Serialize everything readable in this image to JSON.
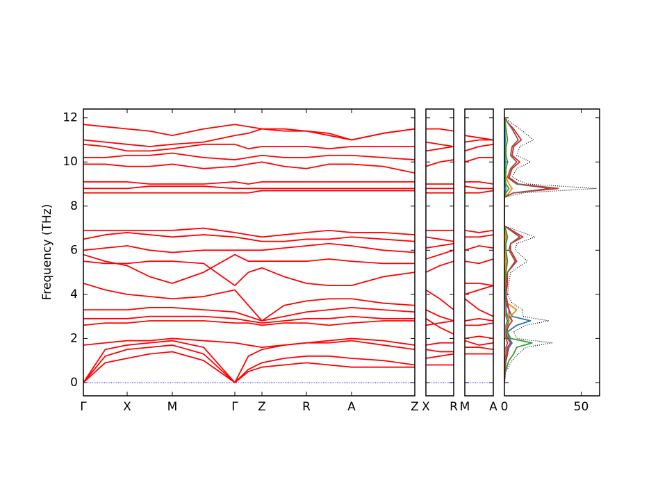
{
  "chart_data": [
    {
      "type": "line",
      "ylabel": "Frequency (THz)",
      "color": "#ff0000",
      "hline": 0,
      "hline_color": "#0000ff",
      "x": [
        0,
        0.315,
        0.63,
        0.955,
        1.28,
        1.73,
        2.18,
        2.375,
        2.57,
        2.89,
        3.21,
        3.535,
        3.86,
        4.315,
        4.77
      ],
      "xlim": [
        0,
        4.77
      ],
      "xticks": [
        {
          "value": 0,
          "label": "Γ"
        },
        {
          "value": 0.63,
          "label": "X"
        },
        {
          "value": 1.28,
          "label": "M"
        },
        {
          "value": 2.18,
          "label": "Γ"
        },
        {
          "value": 2.57,
          "label": "Z"
        },
        {
          "value": 3.21,
          "label": "R"
        },
        {
          "value": 3.86,
          "label": "A"
        },
        {
          "value": 4.77,
          "label": "Z"
        }
      ],
      "ylim": [
        -0.6,
        12.4
      ],
      "yticks": [
        0,
        2,
        4,
        6,
        8,
        10,
        12
      ],
      "series": [
        {
          "values": [
            0,
            0.9,
            1.1,
            1.3,
            1.4,
            1.0,
            0,
            0.5,
            0.7,
            0.8,
            0.9,
            0.8,
            0.7,
            0.7,
            0.7
          ]
        },
        {
          "values": [
            0,
            1.2,
            1.5,
            1.6,
            1.7,
            1.3,
            0,
            0.6,
            0.9,
            1.1,
            1.2,
            1.2,
            1.1,
            1.0,
            0.8
          ]
        },
        {
          "values": [
            0,
            1.5,
            1.7,
            1.8,
            1.9,
            1.6,
            0,
            1.2,
            1.5,
            1.7,
            1.8,
            1.8,
            1.9,
            1.7,
            1.5
          ]
        },
        {
          "values": [
            1.7,
            1.8,
            1.9,
            1.9,
            2.0,
            1.9,
            1.8,
            1.7,
            1.6,
            1.7,
            1.8,
            1.9,
            2.0,
            1.9,
            1.7
          ]
        },
        {
          "values": [
            2.6,
            2.7,
            2.7,
            2.8,
            2.8,
            2.8,
            2.7,
            2.7,
            2.6,
            2.7,
            2.7,
            2.6,
            2.7,
            2.8,
            2.8
          ]
        },
        {
          "values": [
            2.9,
            2.9,
            2.9,
            3.0,
            3.0,
            3.0,
            2.9,
            2.8,
            2.7,
            2.8,
            2.9,
            2.9,
            3.0,
            2.9,
            2.9
          ]
        },
        {
          "values": [
            3.3,
            3.3,
            3.3,
            3.4,
            3.4,
            3.3,
            3.2,
            3.0,
            2.8,
            3.0,
            3.2,
            3.3,
            3.4,
            3.3,
            3.2
          ]
        },
        {
          "values": [
            4.5,
            4.2,
            4.0,
            3.9,
            3.8,
            3.9,
            4.2,
            3.5,
            2.8,
            3.5,
            3.7,
            3.8,
            3.8,
            3.6,
            3.5
          ]
        },
        {
          "values": [
            5.5,
            5.4,
            5.4,
            5.5,
            5.5,
            5.4,
            4.4,
            5.0,
            5.2,
            4.8,
            4.5,
            4.4,
            4.4,
            4.8,
            5.0
          ]
        },
        {
          "values": [
            5.8,
            5.5,
            5.3,
            4.8,
            4.5,
            5.0,
            5.8,
            5.5,
            5.5,
            5.5,
            5.5,
            5.6,
            5.5,
            5.4,
            5.4
          ]
        },
        {
          "values": [
            6.0,
            6.1,
            6.2,
            6.0,
            5.9,
            6.0,
            6.0,
            6.0,
            6.0,
            6.1,
            6.2,
            6.3,
            6.2,
            6.0,
            5.9
          ]
        },
        {
          "values": [
            6.5,
            6.7,
            6.8,
            6.7,
            6.6,
            6.7,
            6.6,
            6.5,
            6.4,
            6.4,
            6.5,
            6.5,
            6.6,
            6.5,
            6.4
          ]
        },
        {
          "values": [
            6.9,
            6.9,
            6.9,
            6.9,
            6.9,
            7.0,
            6.8,
            6.7,
            6.6,
            6.7,
            6.8,
            6.9,
            6.8,
            6.8,
            6.7
          ]
        },
        {
          "values": [
            8.6,
            8.6,
            8.6,
            8.6,
            8.6,
            8.6,
            8.6,
            8.6,
            8.7,
            8.7,
            8.7,
            8.7,
            8.7,
            8.7,
            8.7
          ]
        },
        {
          "values": [
            8.8,
            8.8,
            8.8,
            8.9,
            8.9,
            8.9,
            8.8,
            8.8,
            8.8,
            8.8,
            8.8,
            8.8,
            8.8,
            8.8,
            8.8
          ]
        },
        {
          "values": [
            9.1,
            9.1,
            9.1,
            9.0,
            9.0,
            9.0,
            9.1,
            9.0,
            9.1,
            9.1,
            9.1,
            9.1,
            9.1,
            9.1,
            9.1
          ]
        },
        {
          "values": [
            9.9,
            9.9,
            9.8,
            9.8,
            9.9,
            9.7,
            9.8,
            9.9,
            10.0,
            9.8,
            9.7,
            9.9,
            9.9,
            9.8,
            9.5
          ]
        },
        {
          "values": [
            10.2,
            10.2,
            10.3,
            10.3,
            10.4,
            10.2,
            10.1,
            10.2,
            10.3,
            10.2,
            10.2,
            10.3,
            10.3,
            10.2,
            10.1
          ]
        },
        {
          "values": [
            10.8,
            10.7,
            10.5,
            10.5,
            10.6,
            10.8,
            10.8,
            10.6,
            10.7,
            10.7,
            10.7,
            10.6,
            10.7,
            10.7,
            10.7
          ]
        },
        {
          "values": [
            11.0,
            10.9,
            10.8,
            10.7,
            10.8,
            10.9,
            11.2,
            11.3,
            11.5,
            11.4,
            11.4,
            11.2,
            11.0,
            11.3,
            11.5
          ]
        },
        {
          "values": [
            11.7,
            11.6,
            11.5,
            11.4,
            11.2,
            11.5,
            11.7,
            11.6,
            11.5,
            11.5,
            11.4,
            11.3,
            11.0,
            11.3,
            11.5
          ]
        }
      ]
    },
    {
      "type": "line",
      "color": "#ff0000",
      "hline": 0,
      "hline_color": "#0000ff",
      "x": [
        0,
        0.5,
        1
      ],
      "xlim": [
        0,
        1
      ],
      "xticks": [
        {
          "value": 0,
          "label": "X"
        },
        {
          "value": 1,
          "label": "R"
        }
      ],
      "ylim": [
        -0.6,
        12.4
      ],
      "series": [
        {
          "values": [
            0.8,
            0.8,
            0.8
          ]
        },
        {
          "values": [
            1.1,
            1.2,
            1.3
          ]
        },
        {
          "values": [
            1.5,
            1.4,
            1.4
          ]
        },
        {
          "values": [
            1.7,
            1.8,
            1.8
          ]
        },
        {
          "values": [
            2.6,
            2.7,
            2.8
          ]
        },
        {
          "values": [
            2.9,
            2.5,
            2.2
          ]
        },
        {
          "values": [
            3.3,
            3.0,
            2.8
          ]
        },
        {
          "values": [
            4.2,
            3.8,
            3.3
          ]
        },
        {
          "values": [
            5.0,
            5.3,
            5.5
          ]
        },
        {
          "values": [
            5.6,
            5.8,
            6.0
          ]
        },
        {
          "values": [
            6.1,
            6.2,
            6.3
          ]
        },
        {
          "values": [
            6.6,
            6.5,
            6.4
          ]
        },
        {
          "values": [
            6.9,
            6.9,
            6.9
          ]
        },
        {
          "values": [
            8.6,
            8.6,
            8.6
          ]
        },
        {
          "values": [
            8.8,
            8.8,
            8.8
          ]
        },
        {
          "values": [
            9.0,
            9.0,
            9.0
          ]
        },
        {
          "values": [
            9.8,
            10.0,
            10.1
          ]
        },
        {
          "values": [
            10.5,
            10.6,
            10.7
          ]
        },
        {
          "values": [
            10.9,
            10.8,
            10.7
          ]
        },
        {
          "values": [
            11.5,
            11.5,
            11.4
          ]
        }
      ]
    },
    {
      "type": "line",
      "color": "#ff0000",
      "hline": 0,
      "hline_color": "#0000ff",
      "x": [
        0,
        0.5,
        1
      ],
      "xlim": [
        0,
        1
      ],
      "xticks": [
        {
          "value": 0,
          "label": "M"
        },
        {
          "value": 1,
          "label": "A"
        }
      ],
      "ylim": [
        -0.6,
        12.4
      ],
      "series": [
        {
          "values": [
            1.3,
            1.3,
            1.3
          ]
        },
        {
          "values": [
            1.6,
            1.6,
            1.5
          ]
        },
        {
          "values": [
            1.9,
            1.7,
            1.8
          ]
        },
        {
          "values": [
            2.0,
            2.1,
            2.0
          ]
        },
        {
          "values": [
            2.6,
            2.6,
            2.7
          ]
        },
        {
          "values": [
            2.8,
            2.9,
            2.8
          ]
        },
        {
          "values": [
            3.8,
            3.3,
            3.0
          ]
        },
        {
          "values": [
            4.0,
            4.2,
            4.4
          ]
        },
        {
          "values": [
            4.5,
            4.5,
            4.4
          ]
        },
        {
          "values": [
            5.5,
            5.4,
            5.6
          ]
        },
        {
          "values": [
            6.0,
            6.2,
            6.1
          ]
        },
        {
          "values": [
            6.6,
            6.6,
            6.7
          ]
        },
        {
          "values": [
            6.9,
            6.8,
            6.9
          ]
        },
        {
          "values": [
            8.6,
            8.6,
            8.7
          ]
        },
        {
          "values": [
            8.9,
            8.8,
            8.8
          ]
        },
        {
          "values": [
            9.1,
            9.1,
            9.0
          ]
        },
        {
          "values": [
            10.0,
            10.2,
            10.2
          ]
        },
        {
          "values": [
            10.5,
            10.7,
            10.8
          ]
        },
        {
          "values": [
            10.9,
            11.0,
            11.0
          ]
        },
        {
          "values": [
            11.2,
            11.1,
            11.0
          ]
        }
      ]
    },
    {
      "type": "line",
      "orientation": "horizontal",
      "y": [
        0,
        0.5,
        1.0,
        1.3,
        1.6,
        1.8,
        2.0,
        2.3,
        2.6,
        2.8,
        3.0,
        3.3,
        3.6,
        4.0,
        4.5,
        5.0,
        5.5,
        6.0,
        6.3,
        6.6,
        6.9,
        7.1,
        8.4,
        8.6,
        8.8,
        9.0,
        9.3,
        9.7,
        10.0,
        10.3,
        10.7,
        11.0,
        11.5,
        11.8,
        12.0
      ],
      "xlim": [
        0,
        62
      ],
      "xticks": [
        0,
        50
      ],
      "ylim": [
        -0.6,
        12.4
      ],
      "series": [
        {
          "color": "#1f77b4",
          "values": [
            0,
            0.3,
            1,
            2,
            3,
            5,
            3,
            2,
            8,
            17,
            5,
            3,
            1,
            0.5,
            0.5,
            0.5,
            1,
            0.5,
            0.5,
            1,
            0.5,
            0,
            0,
            0.5,
            1,
            0.5,
            0.3,
            0.3,
            0.5,
            0.3,
            0.3,
            0.5,
            0.3,
            0.2,
            0
          ]
        },
        {
          "color": "#ff7f0e",
          "values": [
            0,
            0.2,
            0.5,
            1,
            1,
            2,
            1,
            1,
            3,
            5,
            4,
            8,
            2,
            0.5,
            0.5,
            0.5,
            1,
            0.5,
            0.5,
            1,
            0.5,
            0,
            0,
            3,
            5,
            3,
            1,
            1,
            2,
            1,
            1,
            2,
            1,
            0.5,
            0
          ]
        },
        {
          "color": "#2ca02c",
          "values": [
            0,
            0.5,
            3,
            6,
            8,
            18,
            4,
            2,
            2,
            3,
            2,
            1,
            1,
            0.5,
            1,
            1,
            2,
            1,
            1,
            2,
            1,
            0,
            0,
            1,
            3,
            1,
            0.5,
            1,
            2,
            1,
            1,
            2,
            1,
            0.5,
            0
          ]
        },
        {
          "color": "#d62728",
          "values": [
            0,
            0.3,
            1,
            2,
            2,
            4,
            2,
            1,
            3,
            5,
            3,
            3,
            2,
            1,
            2,
            2,
            8,
            4,
            4,
            12,
            5,
            0,
            0,
            6,
            35,
            9,
            3,
            5,
            10,
            5,
            6,
            11,
            6,
            2,
            0
          ]
        },
        {
          "color": "#8c564b",
          "values": [
            0,
            0.2,
            0.5,
            1,
            1,
            2,
            1,
            1,
            1,
            2,
            1,
            1,
            1,
            1,
            1,
            2,
            7,
            3,
            4,
            10,
            4,
            0,
            0,
            6,
            30,
            8,
            2,
            4,
            8,
            4,
            5,
            9,
            5,
            2,
            0
          ]
        },
        {
          "color": "#000000",
          "dash": "dotted",
          "values": [
            0,
            1,
            5,
            9,
            14,
            31,
            8,
            6,
            14,
            29,
            12,
            12,
            5,
            2,
            3,
            4,
            15,
            7,
            8,
            20,
            8,
            0,
            0,
            12,
            60,
            15,
            5,
            8,
            17,
            8,
            10,
            19,
            10,
            4,
            0
          ]
        }
      ]
    }
  ]
}
